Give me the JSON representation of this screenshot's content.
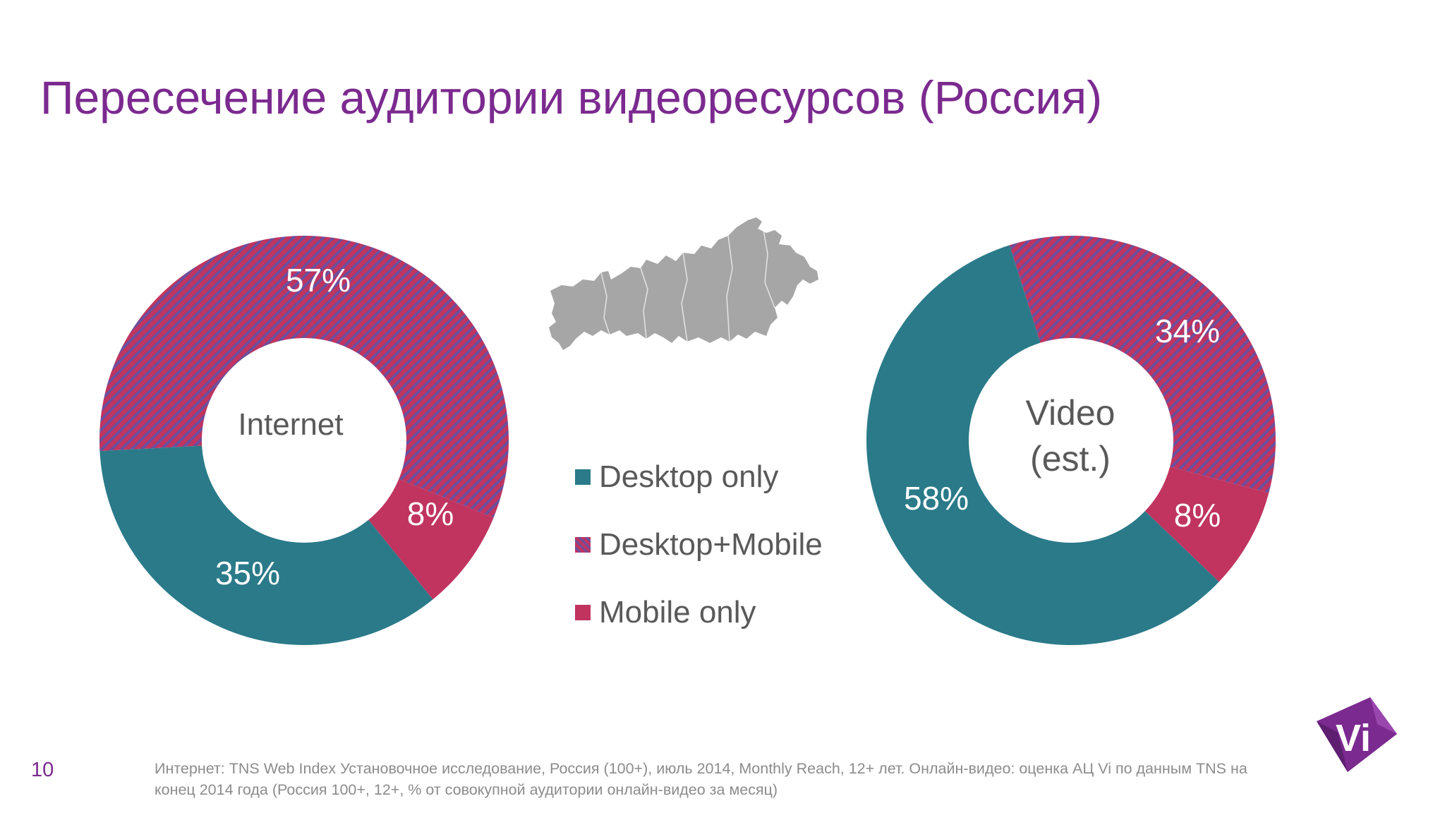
{
  "slide": {
    "title": "Пересечение аудитории видеоресурсов (Россия)",
    "page_number": "10",
    "source_note": "Интернет: TNS Web Index Установочное исследование, Россия (100+), июль 2014, Monthly Reach, 12+ лет. Онлайн-видео: оценка АЦ Vi по данным TNS на конец 2014 года (Россия 100+, 12+, % от совокупной аудитории онлайн-видео за месяц)",
    "logo_text": "Vi"
  },
  "colors": {
    "title": "#7b2a8f",
    "desktop_only": "#2a7a89",
    "desktop_mobile_stripe_a": "#c0345f",
    "desktop_mobile_stripe_b": "#6b4f9e",
    "mobile_only": "#c0345f",
    "map": "#a6a6a6",
    "logo": "#7b2a8f"
  },
  "legend": [
    {
      "key": "desktop_only",
      "label": "Desktop only"
    },
    {
      "key": "desktop_mobile",
      "label": "Desktop+Mobile"
    },
    {
      "key": "mobile_only",
      "label": "Mobile only"
    }
  ],
  "chart_data": [
    {
      "type": "pie",
      "center_label": [
        "Internet"
      ],
      "series": [
        {
          "name": "Desktop+Mobile",
          "key": "desktop_mobile",
          "value": 57,
          "label": "57%"
        },
        {
          "name": "Mobile only",
          "key": "mobile_only",
          "value": 8,
          "label": "8%"
        },
        {
          "name": "Desktop only",
          "key": "desktop_only",
          "value": 35,
          "label": "35%"
        }
      ]
    },
    {
      "type": "pie",
      "center_label": [
        "Video",
        "(est.)"
      ],
      "series": [
        {
          "name": "Desktop+Mobile",
          "key": "desktop_mobile",
          "value": 34,
          "label": "34%"
        },
        {
          "name": "Mobile only",
          "key": "mobile_only",
          "value": 8,
          "label": "8%"
        },
        {
          "name": "Desktop only",
          "key": "desktop_only",
          "value": 58,
          "label": "58%"
        }
      ]
    }
  ]
}
